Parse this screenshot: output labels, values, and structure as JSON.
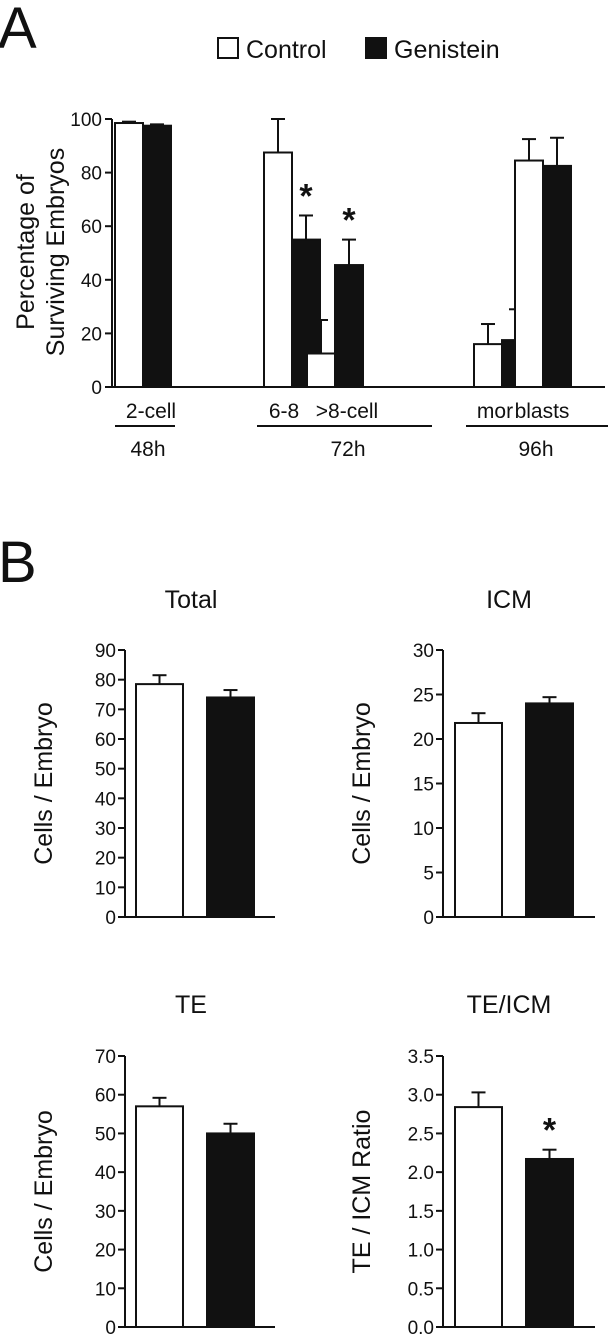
{
  "panel_labels": {
    "a": "A",
    "b": "B"
  },
  "legend": [
    {
      "label": "Control",
      "fill": "#ffffff"
    },
    {
      "label": "Genistein",
      "fill": "#111111"
    }
  ],
  "colors": {
    "control": "#ffffff",
    "genistein": "#111111",
    "ink": "#111111"
  },
  "chart_data": [
    {
      "type": "bar",
      "panel": "A",
      "ylabel_lines": [
        "Percentage of",
        "Surviving Embryos"
      ],
      "ylim": [
        0,
        100
      ],
      "yticks": [
        0,
        20,
        40,
        60,
        80,
        100
      ],
      "categories": [
        "2-cell",
        "6-8",
        ">8-cell",
        "mor",
        "blasts"
      ],
      "groups": [
        {
          "label": "48h",
          "categories": [
            "2-cell"
          ]
        },
        {
          "label": "72h",
          "categories": [
            "6-8",
            ">8-cell"
          ]
        },
        {
          "label": "96h",
          "categories": [
            "mor",
            "blasts"
          ]
        }
      ],
      "series": [
        {
          "name": "Control",
          "values": [
            98.5,
            87.5,
            12.5,
            16,
            84.5
          ],
          "errors": [
            0.5,
            12.5,
            12.5,
            7.5,
            8
          ]
        },
        {
          "name": "Genistein",
          "values": [
            97.5,
            55,
            45.5,
            17.5,
            82.5
          ],
          "errors": [
            0.5,
            9,
            9.5,
            11.5,
            10.5
          ]
        }
      ],
      "significance": [
        {
          "category": "6-8",
          "series": "Genistein",
          "mark": "*"
        },
        {
          "category": ">8-cell",
          "series": "Genistein",
          "mark": "*"
        }
      ]
    },
    {
      "type": "bar",
      "title": "Total",
      "ylabel": "Cells / Embryo",
      "ylim": [
        0,
        90
      ],
      "yticks": [
        0,
        10,
        20,
        30,
        40,
        50,
        60,
        70,
        80,
        90
      ],
      "categories": [
        "Control",
        "Genistein"
      ],
      "values": [
        78.5,
        74
      ],
      "errors": [
        3,
        2.5
      ],
      "significance": []
    },
    {
      "type": "bar",
      "title": "ICM",
      "ylabel": "Cells / Embryo",
      "ylim": [
        0,
        30
      ],
      "yticks": [
        0,
        5,
        10,
        15,
        20,
        25,
        30
      ],
      "categories": [
        "Control",
        "Genistein"
      ],
      "values": [
        21.8,
        24
      ],
      "errors": [
        1.1,
        0.7
      ],
      "significance": []
    },
    {
      "type": "bar",
      "title": "TE",
      "ylabel": "Cells / Embryo",
      "ylim": [
        0,
        70
      ],
      "yticks": [
        0,
        10,
        20,
        30,
        40,
        50,
        60,
        70
      ],
      "categories": [
        "Control",
        "Genistein"
      ],
      "values": [
        57,
        50
      ],
      "errors": [
        2.2,
        2.5
      ],
      "significance": []
    },
    {
      "type": "bar",
      "title": "TE/ICM",
      "ylabel": "TE / ICM Ratio",
      "ylim": [
        0,
        3.5
      ],
      "yticks": [
        "0.0",
        "0.5",
        "1.0",
        "1.5",
        "2.0",
        "2.5",
        "3.0",
        "3.5"
      ],
      "categories": [
        "Control",
        "Genistein"
      ],
      "values": [
        2.84,
        2.17
      ],
      "errors": [
        0.19,
        0.12
      ],
      "significance": [
        {
          "category": "Genistein",
          "mark": "*"
        }
      ]
    }
  ]
}
